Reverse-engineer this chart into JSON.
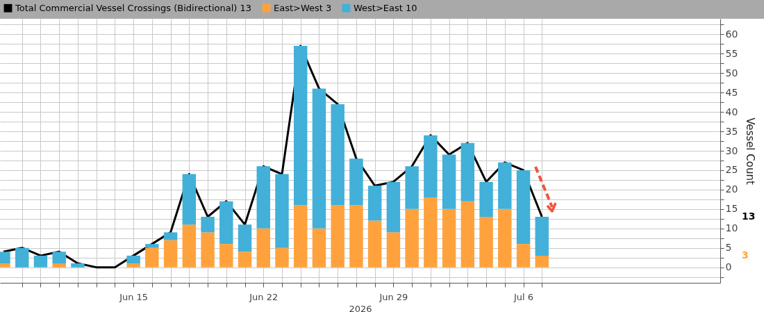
{
  "chart_data": {
    "type": "bar",
    "stacked": true,
    "x": [
      "2026-06-08",
      "2026-06-09",
      "2026-06-10",
      "2026-06-11",
      "2026-06-12",
      "2026-06-13",
      "2026-06-14",
      "2026-06-15",
      "2026-06-16",
      "2026-06-17",
      "2026-06-18",
      "2026-06-19",
      "2026-06-20",
      "2026-06-21",
      "2026-06-22",
      "2026-06-23",
      "2026-06-24",
      "2026-06-25",
      "2026-06-26",
      "2026-06-27",
      "2026-06-28",
      "2026-06-29",
      "2026-06-30",
      "2026-07-01",
      "2026-07-02",
      "2026-07-03",
      "2026-07-04",
      "2026-07-05",
      "2026-07-06",
      "2026-07-07"
    ],
    "series": [
      {
        "name": "Total Commercial Vessel Crossings (Bidirectional) 13",
        "type": "line",
        "color": "#000000",
        "values": [
          4,
          5,
          3,
          4,
          1,
          0,
          0,
          3,
          6,
          9,
          24,
          13,
          17,
          11,
          26,
          24,
          57,
          46,
          42,
          28,
          21,
          22,
          26,
          34,
          29,
          32,
          22,
          27,
          25,
          13
        ]
      },
      {
        "name": "East>West 3",
        "color": "#ffa23d",
        "values": [
          1,
          0,
          0,
          1,
          0,
          0,
          0,
          1,
          5,
          7,
          11,
          9,
          6,
          4,
          10,
          5,
          16,
          10,
          16,
          16,
          12,
          9,
          15,
          18,
          15,
          17,
          13,
          15,
          6,
          3
        ]
      },
      {
        "name": "West>East 10",
        "color": "#42b0d8",
        "values": [
          3,
          5,
          3,
          3,
          1,
          0,
          0,
          2,
          1,
          2,
          13,
          4,
          11,
          7,
          16,
          19,
          41,
          36,
          26,
          12,
          9,
          13,
          11,
          16,
          14,
          15,
          9,
          12,
          19,
          10
        ]
      }
    ],
    "xlabel": "2026",
    "ylabel": "Vessel Count",
    "xlim": [
      "2026-06-08",
      "2026-07-16T10:00"
    ],
    "xticks": [
      {
        "value": "2026-06-09",
        "label": null
      },
      {
        "value": "2026-06-10",
        "label": null
      },
      {
        "value": "2026-06-11",
        "label": null
      },
      {
        "value": "2026-06-12",
        "label": null
      },
      {
        "value": "2026-06-13",
        "label": null
      },
      {
        "value": "2026-06-14",
        "label": null
      },
      {
        "value": "2026-06-15",
        "label": "Jun 15"
      },
      {
        "value": "2026-06-16",
        "label": null
      },
      {
        "value": "2026-06-17",
        "label": null
      },
      {
        "value": "2026-06-18",
        "label": null
      },
      {
        "value": "2026-06-19",
        "label": null
      },
      {
        "value": "2026-06-20",
        "label": null
      },
      {
        "value": "2026-06-21",
        "label": null
      },
      {
        "value": "2026-06-22",
        "label": "Jun 22"
      },
      {
        "value": "2026-06-23",
        "label": null
      },
      {
        "value": "2026-06-24",
        "label": null
      },
      {
        "value": "2026-06-25",
        "label": null
      },
      {
        "value": "2026-06-26",
        "label": null
      },
      {
        "value": "2026-06-27",
        "label": null
      },
      {
        "value": "2026-06-28",
        "label": null
      },
      {
        "value": "2026-06-29",
        "label": "Jun 29"
      },
      {
        "value": "2026-06-30",
        "label": null
      },
      {
        "value": "2026-07-01",
        "label": null
      },
      {
        "value": "2026-07-02",
        "label": null
      },
      {
        "value": "2026-07-03",
        "label": null
      },
      {
        "value": "2026-07-04",
        "label": null
      },
      {
        "value": "2026-07-05",
        "label": null
      },
      {
        "value": "2026-07-06",
        "label": "Jul 6"
      },
      {
        "value": "2026-07-07",
        "label": null
      }
    ],
    "ylim": [
      -4,
      64
    ],
    "yticks": [
      {
        "value": -2.5,
        "label": null
      },
      0,
      {
        "value": 2.5,
        "label": null
      },
      5,
      {
        "value": 7.5,
        "label": null
      },
      10,
      {
        "value": 12.5,
        "label": null
      },
      15,
      {
        "value": 17.5,
        "label": null
      },
      20,
      {
        "value": 22.5,
        "label": null
      },
      25,
      {
        "value": 27.5,
        "label": null
      },
      30,
      {
        "value": 32.5,
        "label": null
      },
      35,
      {
        "value": 37.5,
        "label": null
      },
      40,
      {
        "value": 42.5,
        "label": null
      },
      45,
      {
        "value": 47.5,
        "label": null
      },
      50,
      {
        "value": 52.5,
        "label": null
      },
      55,
      {
        "value": 57.5,
        "label": null
      },
      60,
      {
        "value": 62.5,
        "label": null
      }
    ],
    "annotations": [
      "13",
      "3"
    ],
    "grid": true,
    "legend": "top left",
    "marker": "none",
    "line_style": "solid"
  }
}
